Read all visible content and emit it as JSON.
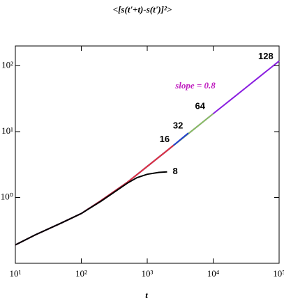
{
  "chart_data": {
    "type": "line",
    "title": "<[s(t'+t)-s(t')]²>",
    "x_label": "t",
    "log_x": true,
    "log_y": true,
    "xlim": [
      10,
      100000
    ],
    "ylim": [
      0.1,
      200
    ],
    "xticks": [
      {
        "value": 10,
        "label": "10¹"
      },
      {
        "value": 100,
        "label": "10²"
      },
      {
        "value": 1000,
        "label": "10³"
      },
      {
        "value": 10000,
        "label": "10⁴"
      },
      {
        "value": 100000,
        "label": "10⁵"
      }
    ],
    "yticks": [
      {
        "value": 1,
        "label": "10⁰"
      },
      {
        "value": 10,
        "label": "10¹"
      },
      {
        "value": 100,
        "label": "10²"
      }
    ],
    "annotation": {
      "text": "slope = 0.8",
      "color": "#c020c0"
    },
    "series": [
      {
        "name": "128",
        "color": "#8a1ee0",
        "x": [
          10,
          20,
          50,
          100,
          200,
          500,
          1000,
          2000,
          5000,
          10000,
          20000,
          50000,
          100000
        ],
        "values": [
          0.19,
          0.27,
          0.41,
          0.57,
          0.9,
          1.7,
          2.96,
          5.15,
          10.7,
          18.7,
          32.5,
          67.7,
          118
        ]
      },
      {
        "name": "64",
        "color": "#88c060",
        "x": [
          10,
          20,
          50,
          100,
          200,
          500,
          1000,
          2000,
          5000,
          10000
        ],
        "values": [
          0.19,
          0.27,
          0.41,
          0.57,
          0.9,
          1.7,
          2.96,
          5.15,
          10.7,
          18.7
        ]
      },
      {
        "name": "32",
        "color": "#2040d0",
        "x": [
          10,
          20,
          50,
          100,
          200,
          500,
          1000,
          2000,
          4200
        ],
        "values": [
          0.19,
          0.27,
          0.41,
          0.57,
          0.9,
          1.7,
          2.96,
          5.15,
          9.5
        ]
      },
      {
        "name": "16",
        "color": "#e03040",
        "x": [
          10,
          20,
          50,
          100,
          200,
          500,
          1000,
          2000,
          2500
        ],
        "values": [
          0.19,
          0.27,
          0.41,
          0.57,
          0.9,
          1.7,
          2.96,
          5.15,
          6.2
        ]
      },
      {
        "name": "8",
        "color": "#000000",
        "x": [
          10,
          20,
          50,
          100,
          200,
          500,
          700,
          1000,
          1500,
          2000
        ],
        "values": [
          0.19,
          0.27,
          0.41,
          0.57,
          0.88,
          1.65,
          2.0,
          2.25,
          2.4,
          2.45
        ]
      }
    ]
  }
}
